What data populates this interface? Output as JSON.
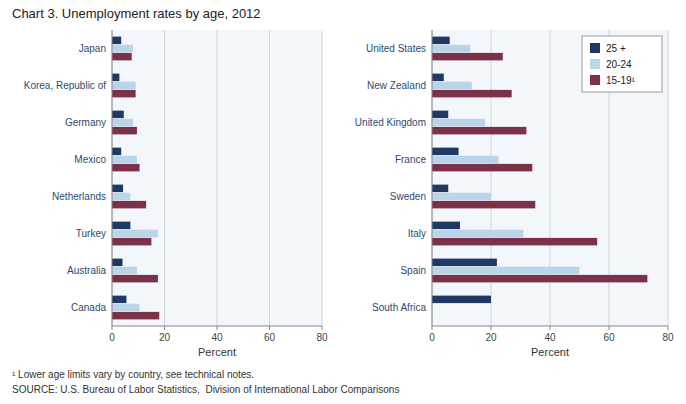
{
  "chart_data": [
    {
      "type": "bar",
      "orientation": "horizontal",
      "title": "Chart 3. Unemployment rates by age, 2012",
      "annotations": [
        "¹ Lower age limits vary by country, see technical notes.",
        "SOURCE: U.S. Bureau of Labor Statistics,  Division of International Labor Comparisons"
      ],
      "categories": [
        "Japan",
        "Korea, Republic of",
        "Germany",
        "Mexico",
        "Netherlands",
        "Turkey",
        "Australia",
        "Canada"
      ],
      "series": [
        {
          "color": "#1f3864",
          "values": [
            3.5,
            2.8,
            4.5,
            3.5,
            4.2,
            7.0,
            4.0,
            5.5
          ]
        },
        {
          "color": "#bad4ea",
          "values": [
            8.0,
            9.0,
            8.0,
            9.5,
            7.0,
            17.5,
            9.5,
            10.5
          ]
        },
        {
          "color": "#7b3249",
          "values": [
            7.5,
            9.0,
            9.5,
            10.5,
            13.0,
            15.0,
            17.5,
            18.0
          ]
        }
      ],
      "xlabel": "Percent",
      "xlim": [
        0,
        80
      ],
      "xticks": [
        0,
        20,
        40,
        60,
        80
      ],
      "grid": true
    },
    {
      "type": "bar",
      "orientation": "horizontal",
      "categories": [
        "United States",
        "New Zealand",
        "United Kingdom",
        "France",
        "Sweden",
        "Italy",
        "Spain",
        "South Africa"
      ],
      "series": [
        {
          "name": "25 +",
          "color": "#1f3864",
          "values": [
            6.0,
            4.0,
            5.5,
            9.0,
            5.5,
            9.5,
            22.0,
            20.0
          ]
        },
        {
          "name": "20-24",
          "color": "#bad4ea",
          "values": [
            13.0,
            13.5,
            18.0,
            22.5,
            20.0,
            31.0,
            50.0,
            null
          ]
        },
        {
          "name": "15-19¹",
          "color": "#7b3249",
          "values": [
            24.0,
            27.0,
            32.0,
            34.0,
            35.0,
            56.0,
            73.0,
            null
          ]
        }
      ],
      "xlabel": "Percent",
      "xlim": [
        0,
        80
      ],
      "xticks": [
        0,
        20,
        40,
        60,
        80
      ],
      "grid": true,
      "legend": "upper right"
    }
  ]
}
